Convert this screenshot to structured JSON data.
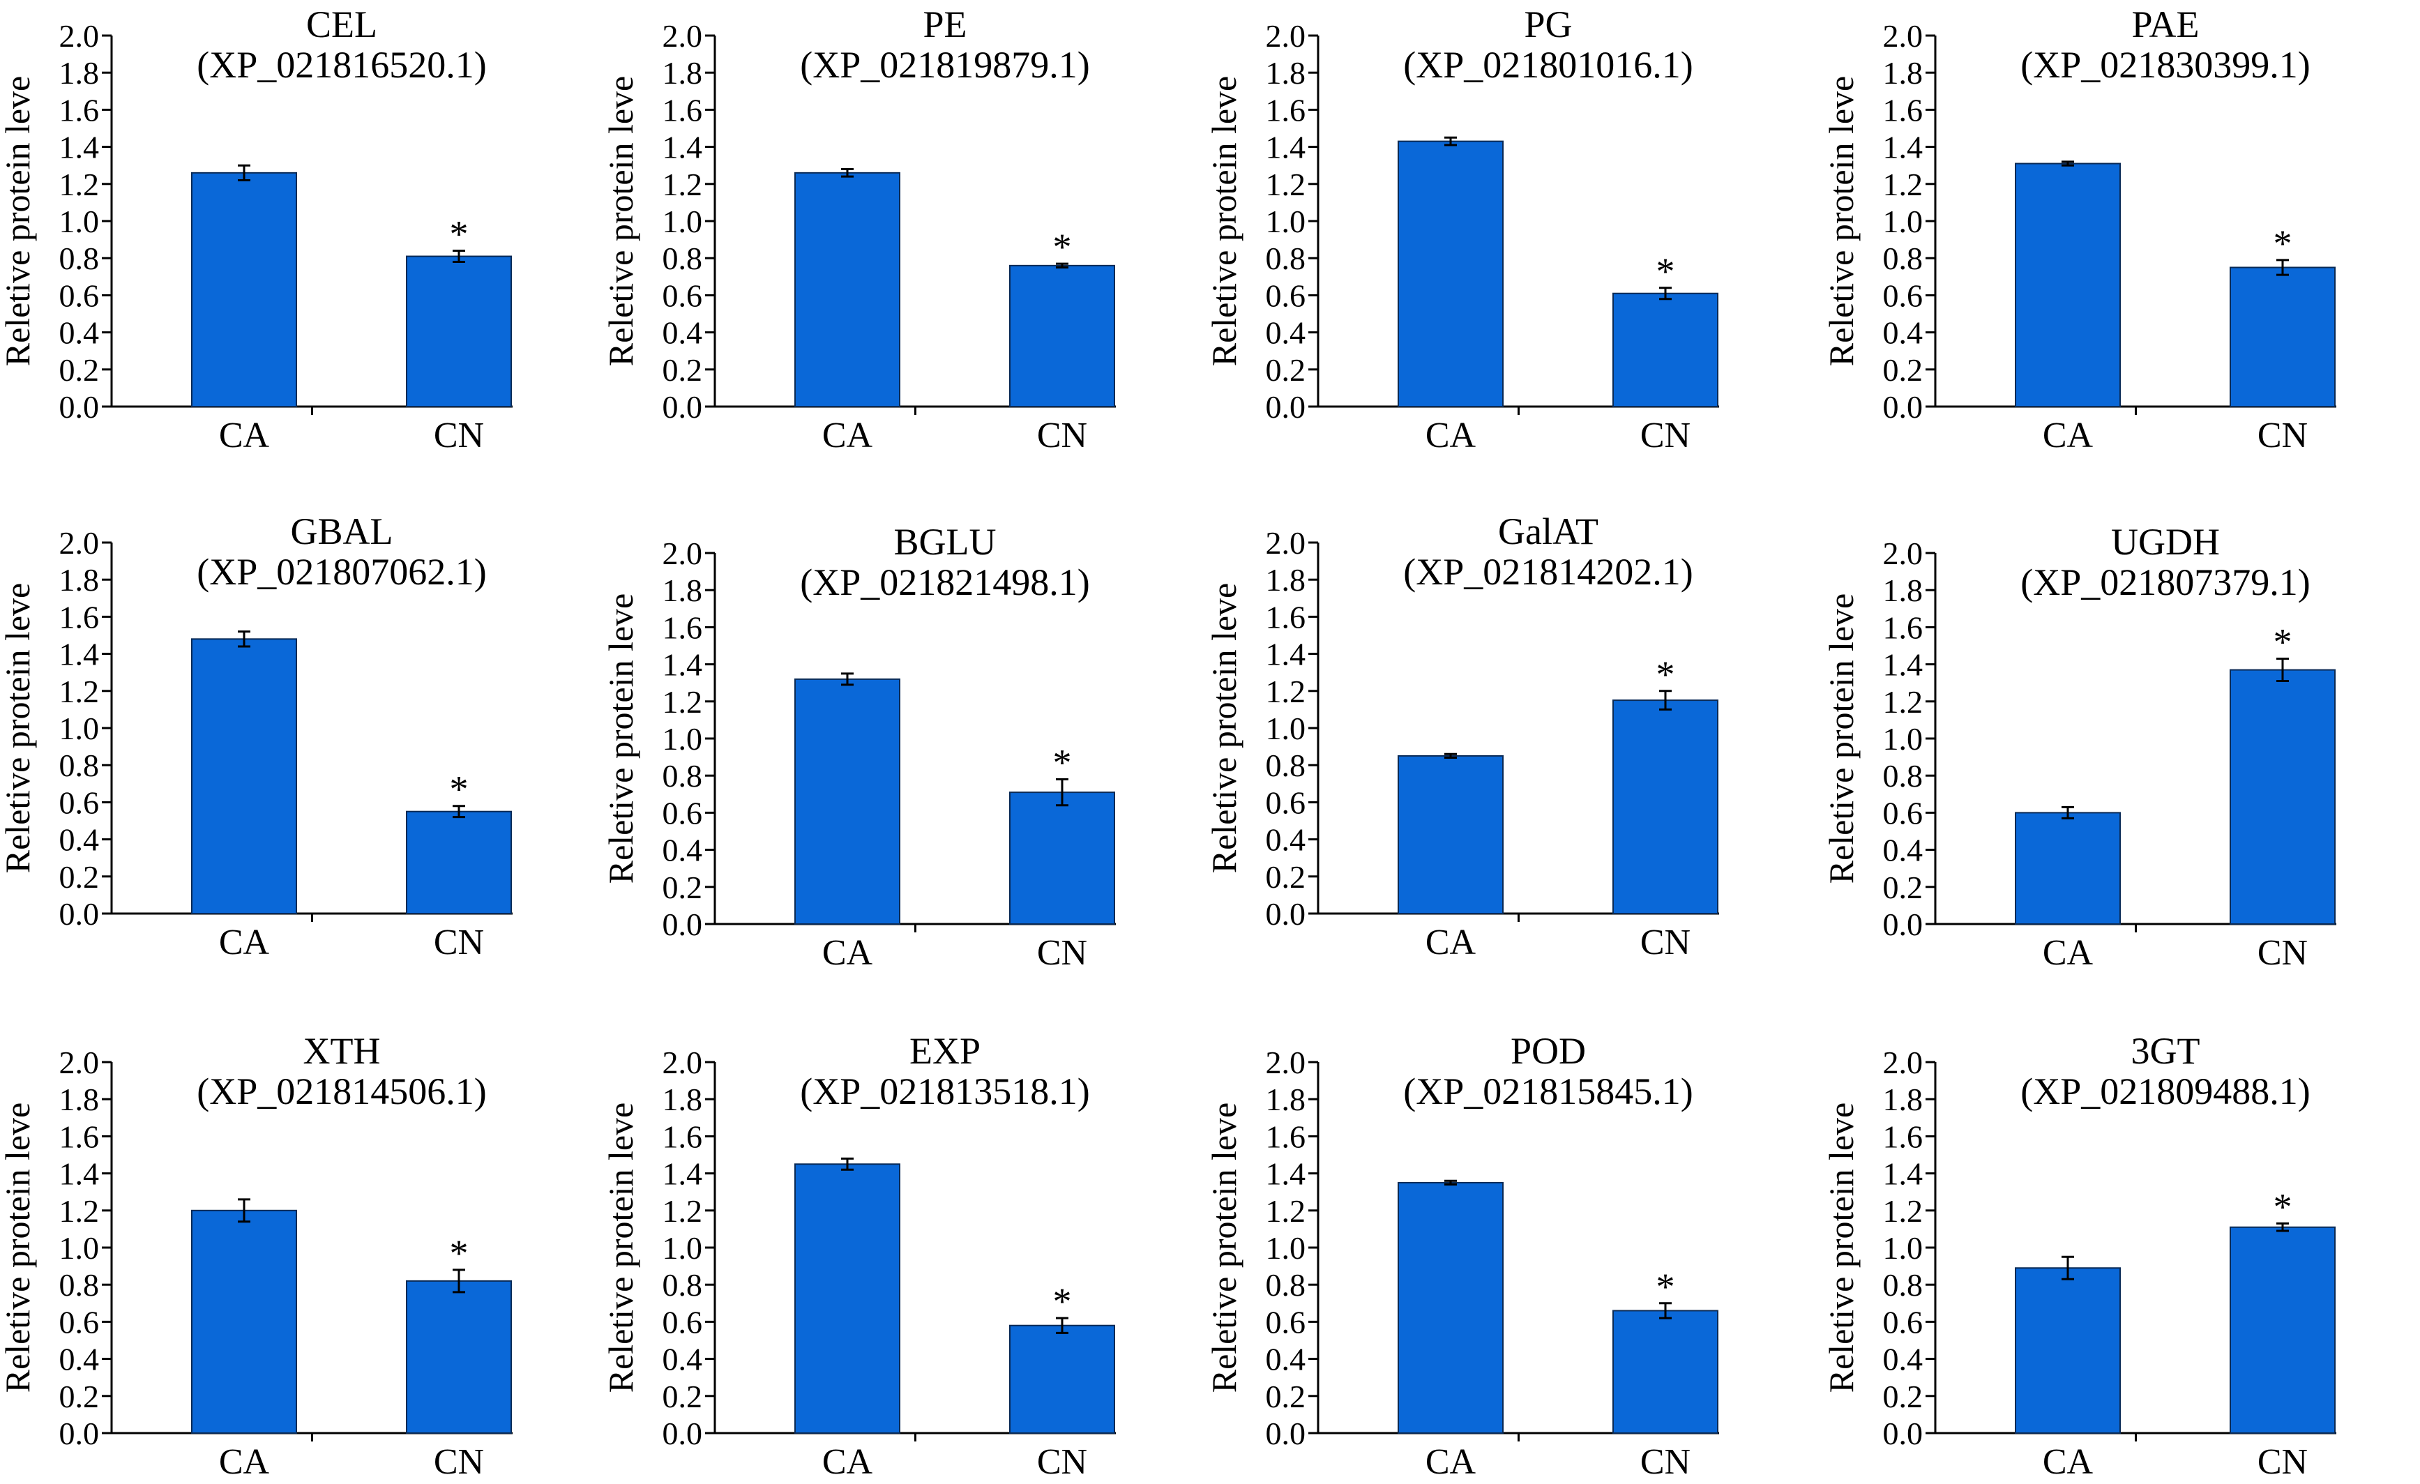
{
  "figure": {
    "bar_color": "#0a68d8",
    "bar_stroke": "#0a2a55",
    "text_color": "#000000"
  },
  "chart_data": [
    {
      "type": "bar",
      "title": "CEL",
      "subtitle": "(XP_021816520.1)",
      "ylabel": "Reletive protein leve",
      "ylim": [
        0,
        2.0
      ],
      "yticks": [
        "0.0",
        "0.2",
        "0.4",
        "0.6",
        "0.8",
        "1.0",
        "1.2",
        "1.4",
        "1.6",
        "1.8",
        "2.0"
      ],
      "categories": [
        "CA",
        "CN"
      ],
      "values": [
        1.26,
        0.81
      ],
      "errors": [
        0.04,
        0.03
      ],
      "significance": [
        "",
        "*"
      ]
    },
    {
      "type": "bar",
      "title": "PE",
      "subtitle": "(XP_021819879.1)",
      "ylabel": "Reletive protein leve",
      "ylim": [
        0,
        2.0
      ],
      "yticks": [
        "0.0",
        "0.2",
        "0.4",
        "0.6",
        "0.8",
        "1.0",
        "1.2",
        "1.4",
        "1.6",
        "1.8",
        "2.0"
      ],
      "categories": [
        "CA",
        "CN"
      ],
      "values": [
        1.26,
        0.76
      ],
      "errors": [
        0.02,
        0.01
      ],
      "significance": [
        "",
        "*"
      ]
    },
    {
      "type": "bar",
      "title": "PG",
      "subtitle": "(XP_021801016.1)",
      "ylabel": "Reletive protein leve",
      "ylim": [
        0,
        2.0
      ],
      "yticks": [
        "0.0",
        "0.2",
        "0.4",
        "0.6",
        "0.8",
        "1.0",
        "1.2",
        "1.4",
        "1.6",
        "1.8",
        "2.0"
      ],
      "categories": [
        "CA",
        "CN"
      ],
      "values": [
        1.43,
        0.61
      ],
      "errors": [
        0.02,
        0.03
      ],
      "significance": [
        "",
        "*"
      ]
    },
    {
      "type": "bar",
      "title": "PAE",
      "subtitle": "(XP_021830399.1)",
      "ylabel": "Reletive protein leve",
      "ylim": [
        0,
        2.0
      ],
      "yticks": [
        "0.0",
        "0.2",
        "0.4",
        "0.6",
        "0.8",
        "1.0",
        "1.2",
        "1.4",
        "1.6",
        "1.8",
        "2.0"
      ],
      "categories": [
        "CA",
        "CN"
      ],
      "values": [
        1.31,
        0.75
      ],
      "errors": [
        0.01,
        0.04
      ],
      "significance": [
        "",
        "*"
      ]
    },
    {
      "type": "bar",
      "title": "GBAL",
      "subtitle": "(XP_021807062.1)",
      "ylabel": "Reletive protein leve",
      "ylim": [
        0,
        2.0
      ],
      "yticks": [
        "0.0",
        "0.2",
        "0.4",
        "0.6",
        "0.8",
        "1.0",
        "1.2",
        "1.4",
        "1.6",
        "1.8",
        "2.0"
      ],
      "categories": [
        "CA",
        "CN"
      ],
      "values": [
        1.48,
        0.55
      ],
      "errors": [
        0.04,
        0.03
      ],
      "significance": [
        "",
        "*"
      ]
    },
    {
      "type": "bar",
      "title": "BGLU",
      "subtitle": "(XP_021821498.1)",
      "ylabel": "Reletive protein leve",
      "ylim": [
        0,
        2.0
      ],
      "yticks": [
        "0.0",
        "0.2",
        "0.4",
        "0.6",
        "0.8",
        "1.0",
        "1.2",
        "1.4",
        "1.6",
        "1.8",
        "2.0"
      ],
      "categories": [
        "CA",
        "CN"
      ],
      "values": [
        1.32,
        0.71
      ],
      "errors": [
        0.03,
        0.07
      ],
      "significance": [
        "",
        "*"
      ]
    },
    {
      "type": "bar",
      "title": "GalAT",
      "subtitle": "(XP_021814202.1)",
      "ylabel": "Reletive protein leve",
      "ylim": [
        0,
        2.0
      ],
      "yticks": [
        "0.0",
        "0.2",
        "0.4",
        "0.6",
        "0.8",
        "1.0",
        "1.2",
        "1.4",
        "1.6",
        "1.8",
        "2.0"
      ],
      "categories": [
        "CA",
        "CN"
      ],
      "values": [
        0.85,
        1.15
      ],
      "errors": [
        0.01,
        0.05
      ],
      "significance": [
        "",
        "*"
      ]
    },
    {
      "type": "bar",
      "title": "UGDH",
      "subtitle": "(XP_021807379.1)",
      "ylabel": "Reletive protein leve",
      "ylim": [
        0,
        2.0
      ],
      "yticks": [
        "0.0",
        "0.2",
        "0.4",
        "0.6",
        "0.8",
        "1.0",
        "1.2",
        "1.4",
        "1.6",
        "1.8",
        "2.0"
      ],
      "categories": [
        "CA",
        "CN"
      ],
      "values": [
        0.6,
        1.37
      ],
      "errors": [
        0.03,
        0.06
      ],
      "significance": [
        "",
        "*"
      ]
    },
    {
      "type": "bar",
      "title": "XTH",
      "subtitle": "(XP_021814506.1)",
      "ylabel": "Reletive protein leve",
      "ylim": [
        0,
        2.0
      ],
      "yticks": [
        "0.0",
        "0.2",
        "0.4",
        "0.6",
        "0.8",
        "1.0",
        "1.2",
        "1.4",
        "1.6",
        "1.8",
        "2.0"
      ],
      "categories": [
        "CA",
        "CN"
      ],
      "values": [
        1.2,
        0.82
      ],
      "errors": [
        0.06,
        0.06
      ],
      "significance": [
        "",
        "*"
      ]
    },
    {
      "type": "bar",
      "title": "EXP",
      "subtitle": "(XP_021813518.1)",
      "ylabel": "Reletive protein leve",
      "ylim": [
        0,
        2.0
      ],
      "yticks": [
        "0.0",
        "0.2",
        "0.4",
        "0.6",
        "0.8",
        "1.0",
        "1.2",
        "1.4",
        "1.6",
        "1.8",
        "2.0"
      ],
      "categories": [
        "CA",
        "CN"
      ],
      "values": [
        1.45,
        0.58
      ],
      "errors": [
        0.03,
        0.04
      ],
      "significance": [
        "",
        "*"
      ]
    },
    {
      "type": "bar",
      "title": "POD",
      "subtitle": "(XP_021815845.1)",
      "ylabel": "Reletive protein leve",
      "ylim": [
        0,
        2.0
      ],
      "yticks": [
        "0.0",
        "0.2",
        "0.4",
        "0.6",
        "0.8",
        "1.0",
        "1.2",
        "1.4",
        "1.6",
        "1.8",
        "2.0"
      ],
      "categories": [
        "CA",
        "CN"
      ],
      "values": [
        1.35,
        0.66
      ],
      "errors": [
        0.01,
        0.04
      ],
      "significance": [
        "",
        "*"
      ]
    },
    {
      "type": "bar",
      "title": "3GT",
      "subtitle": "(XP_021809488.1)",
      "ylabel": "Reletive protein leve",
      "ylim": [
        0,
        2.0
      ],
      "yticks": [
        "0.0",
        "0.2",
        "0.4",
        "0.6",
        "0.8",
        "1.0",
        "1.2",
        "1.4",
        "1.6",
        "1.8",
        "2.0"
      ],
      "categories": [
        "CA",
        "CN"
      ],
      "values": [
        0.89,
        1.11
      ],
      "errors": [
        0.06,
        0.02
      ],
      "significance": [
        "",
        "*"
      ]
    }
  ]
}
